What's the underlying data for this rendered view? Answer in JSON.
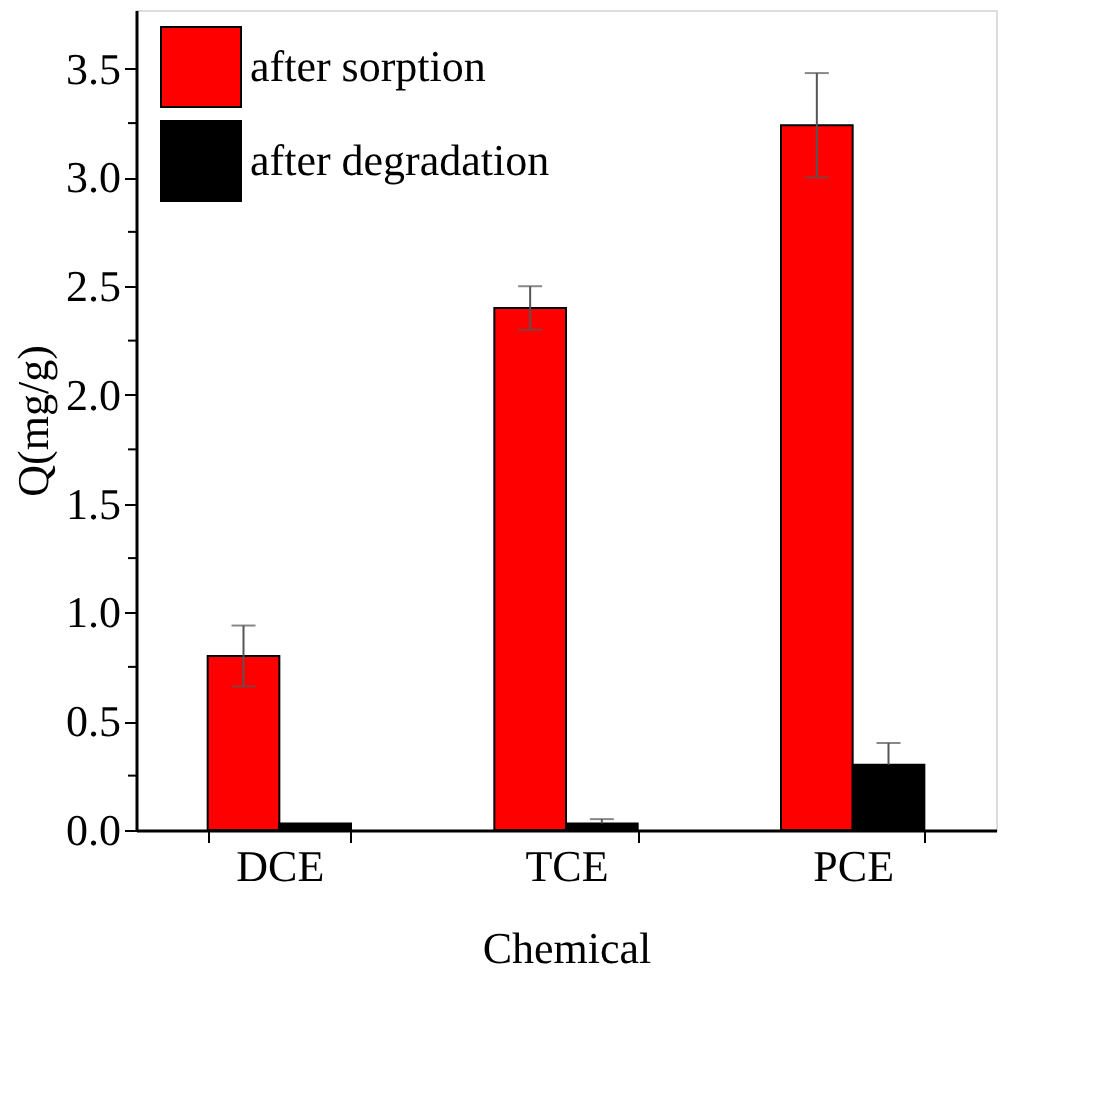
{
  "chart_data": {
    "type": "bar",
    "xlabel": "Chemical",
    "ylabel": "Q(mg/g)",
    "categories": [
      "DCE",
      "TCE",
      "PCE"
    ],
    "series": [
      {
        "name": "after sorption",
        "color": "#ff0000",
        "values": [
          0.8,
          2.4,
          3.24
        ],
        "errors": [
          0.14,
          0.1,
          0.24
        ]
      },
      {
        "name": "after degradation",
        "color": "#000000",
        "values": [
          0.03,
          0.03,
          0.3
        ],
        "errors": [
          null,
          [
            0.03,
            0.05
          ],
          [
            0.3,
            0.4
          ]
        ]
      }
    ],
    "ylim": [
      0,
      3.77
    ],
    "yticks": [
      {
        "value": 0,
        "label": "0.0"
      },
      {
        "value": 0.25,
        "label": null
      },
      0.5,
      {
        "value": 0.75,
        "label": null
      },
      {
        "value": 1,
        "label": "1.0"
      },
      {
        "value": 1.25,
        "label": null
      },
      1.5,
      {
        "value": 1.75,
        "label": null
      },
      {
        "value": 2,
        "label": "2.0"
      },
      {
        "value": 2.25,
        "label": null
      },
      2.5,
      {
        "value": 2.75,
        "label": null
      },
      {
        "value": 3,
        "label": "3.0"
      },
      {
        "value": 3.25,
        "label": null
      },
      3.5
    ],
    "grid": false,
    "legend": "top left"
  }
}
